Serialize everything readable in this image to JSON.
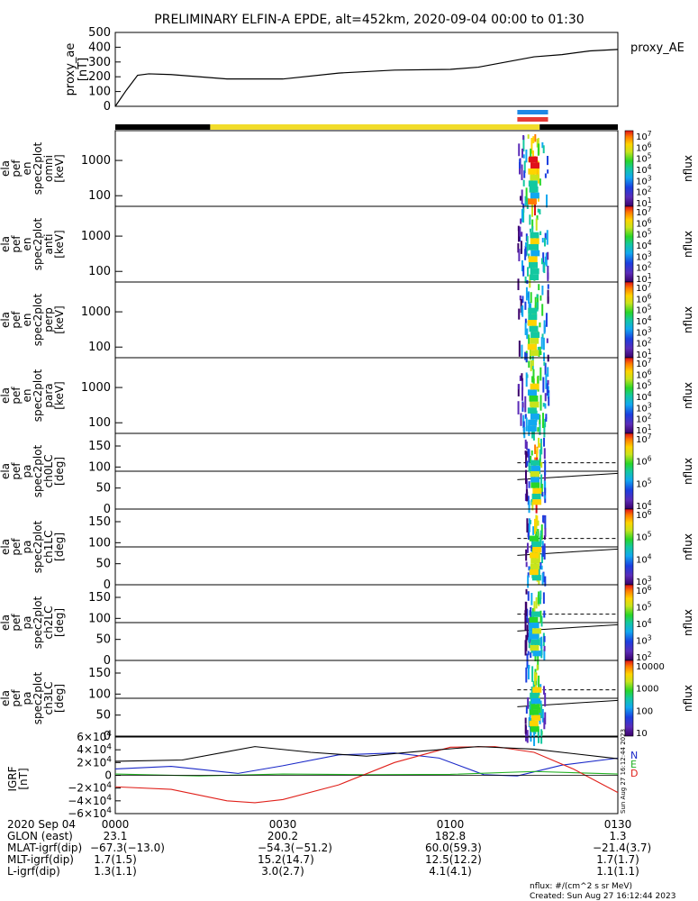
{
  "title": "PRELIMINARY ELFIN-A EPDE, alt=452km, 2020-09-04 00:00 to 01:30",
  "proxy_ae": {
    "ylabel": "proxy_ae [nT]",
    "label": "proxy_AE",
    "ticks": [
      "500",
      "400",
      "300",
      "200",
      "100",
      "0"
    ]
  },
  "energy_panels": [
    {
      "ylabel": [
        "ela",
        "pef",
        "en",
        "spec2plot",
        "omni",
        "[keV]"
      ],
      "ticks": [
        "1000",
        "100"
      ]
    },
    {
      "ylabel": [
        "ela",
        "pef",
        "en",
        "spec2plot",
        "anti",
        "[keV]"
      ],
      "ticks": [
        "1000",
        "100"
      ]
    },
    {
      "ylabel": [
        "ela",
        "pef",
        "en",
        "spec2plot",
        "perp",
        "[keV]"
      ],
      "ticks": [
        "1000",
        "100"
      ]
    },
    {
      "ylabel": [
        "ela",
        "pef",
        "en",
        "spec2plot",
        "para",
        "[keV]"
      ],
      "ticks": [
        "1000",
        "100"
      ]
    }
  ],
  "pa_panels": [
    {
      "ylabel": [
        "ela",
        "pef",
        "pa",
        "spec2plot",
        "ch0LC",
        "[deg]"
      ],
      "ticks": [
        "150",
        "100",
        "50",
        "0"
      ]
    },
    {
      "ylabel": [
        "ela",
        "pef",
        "pa",
        "spec2plot",
        "ch1LC",
        "[deg]"
      ],
      "ticks": [
        "150",
        "100",
        "50",
        "0"
      ]
    },
    {
      "ylabel": [
        "ela",
        "pef",
        "pa",
        "spec2plot",
        "ch2LC",
        "[deg]"
      ],
      "ticks": [
        "150",
        "100",
        "50",
        "0"
      ]
    },
    {
      "ylabel": [
        "ela",
        "pef",
        "pa",
        "spec2plot",
        "ch3LC",
        "[deg]"
      ],
      "ticks": [
        "150",
        "100",
        "50",
        "0"
      ]
    }
  ],
  "colorbars": [
    {
      "label": "nflux",
      "ticks": [
        "10^7",
        "10^6",
        "10^5",
        "10^4",
        "10^3",
        "10^2",
        "10^1"
      ]
    },
    {
      "label": "nflux",
      "ticks": [
        "10^7",
        "10^6",
        "10^5",
        "10^4",
        "10^3",
        "10^2",
        "10^1"
      ]
    },
    {
      "label": "nflux",
      "ticks": [
        "10^7",
        "10^6",
        "10^5",
        "10^4",
        "10^3",
        "10^2",
        "10^1"
      ]
    },
    {
      "label": "nflux",
      "ticks": [
        "10^7",
        "10^6",
        "10^5",
        "10^4",
        "10^3",
        "10^2",
        "10^1"
      ]
    },
    {
      "label": "nflux",
      "ticks": [
        "10^7",
        "10^6",
        "10^5",
        "10^4"
      ]
    },
    {
      "label": "nflux",
      "ticks": [
        "10^6",
        "10^5",
        "10^4",
        "10^3"
      ]
    },
    {
      "label": "nflux",
      "ticks": [
        "10^6",
        "10^5",
        "10^4",
        "10^3",
        "10^2"
      ]
    },
    {
      "label": "nflux",
      "ticks": [
        "10000",
        "1000",
        "100",
        "10"
      ]
    }
  ],
  "igrf": {
    "ylabel": "IGRF [nT]",
    "ticks": [
      "6×10^4",
      "4×10^4",
      "2×10^4",
      "0",
      "−2×10^4",
      "−4×10^4",
      "−6×10^4"
    ],
    "legend": [
      "N",
      "E",
      "D"
    ],
    "stamp": "Sun Aug 27 16:12:44 2023"
  },
  "footer": {
    "rows": [
      {
        "label": "2020 Sep 04",
        "values": [
          "0000",
          "0030",
          "0100",
          "0130"
        ]
      },
      {
        "label": "GLON (east)",
        "values": [
          "23.1",
          "200.2",
          "182.8",
          "1.3"
        ]
      },
      {
        "label": "MLAT-igrf(dip)",
        "values": [
          "−67.3(−13.0)",
          "−54.3(−51.2)",
          "60.0(59.3)",
          "−21.4(3.7)"
        ]
      },
      {
        "label": "MLT-igrf(dip)",
        "values": [
          "1.7(1.5)",
          "15.2(14.7)",
          "12.5(12.2)",
          "1.7(1.7)"
        ]
      },
      {
        "label": "L-igrf(dip)",
        "values": [
          "1.3(1.1)",
          "3.0(2.7)",
          "4.1(4.1)",
          "1.1(1.1)"
        ]
      }
    ],
    "units": "nflux: #/(cm^2 s sr MeV)",
    "created": "Created: Sun Aug 27 16:12:44 2023"
  },
  "colors": {
    "night": "#000000",
    "day": "#f2dc2a",
    "north_bar": "#1e88e5",
    "south_bar": "#e53935",
    "n_comp": "#1a28c8",
    "e_comp": "#22b022",
    "d_comp": "#e0201a",
    "total": "#000000"
  },
  "chart_data": {
    "type": "line",
    "time_range": [
      "2020-09-04 00:00",
      "2020-09-04 01:30"
    ],
    "proxy_ae_series": {
      "name": "proxy_AE",
      "x_min": [
        0,
        2,
        4,
        6,
        10,
        20,
        30,
        40,
        50,
        60,
        65,
        70,
        75,
        80,
        85,
        90
      ],
      "y": [
        0,
        110,
        210,
        220,
        215,
        185,
        185,
        225,
        245,
        250,
        265,
        300,
        335,
        350,
        375,
        385
      ],
      "ylim": [
        0,
        500
      ]
    },
    "energy_range_keV": [
      50,
      7000
    ],
    "pa_range_deg": [
      0,
      180
    ],
    "science_interval_min": [
      72,
      77.5
    ],
    "daylight_interval_min": [
      17,
      76
    ],
    "igrf_series": [
      {
        "name": "N",
        "x_min": [
          0,
          10,
          22,
          30,
          40,
          50,
          58,
          66,
          72,
          80,
          90
        ],
        "y": [
          10000,
          14000,
          3000,
          15000,
          32000,
          35000,
          27000,
          1000,
          -1000,
          16000,
          27000
        ]
      },
      {
        "name": "E",
        "x_min": [
          0,
          15,
          30,
          45,
          60,
          75,
          90
        ],
        "y": [
          2000,
          -1000,
          2000,
          1000,
          1500,
          6000,
          2000
        ]
      },
      {
        "name": "D",
        "x_min": [
          0,
          10,
          20,
          25,
          30,
          40,
          50,
          60,
          68,
          75,
          82,
          90
        ],
        "y": [
          -18000,
          -22000,
          -40000,
          -43000,
          -38000,
          -15000,
          20000,
          44000,
          45000,
          36000,
          10000,
          -27000
        ]
      },
      {
        "name": "total",
        "x_min": [
          0,
          12,
          25,
          35,
          45,
          55,
          65,
          75,
          90
        ],
        "y": [
          22000,
          24000,
          45000,
          36000,
          30000,
          38000,
          45000,
          41000,
          26000
        ]
      }
    ],
    "igrf_ylim": [
      -60000,
      60000
    ]
  }
}
